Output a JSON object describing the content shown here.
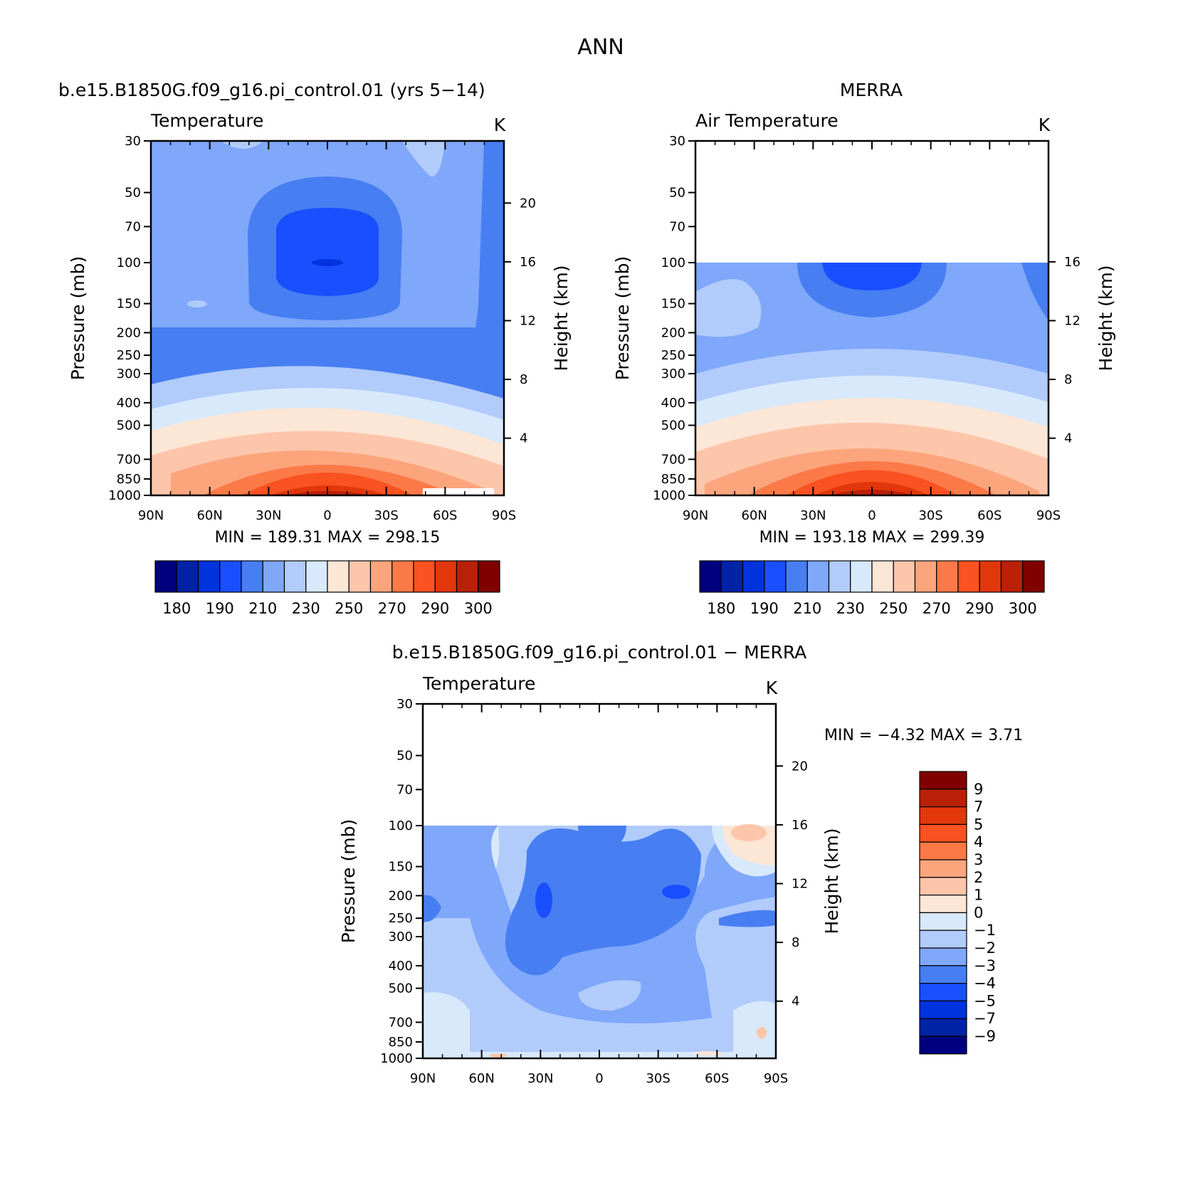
{
  "main_title": "ANN",
  "panels": {
    "model": {
      "title": "b.e15.B1850G.f09_g16.pi_control.01 (yrs 5−14)",
      "left_label": "Temperature",
      "units": "K",
      "ylabel": "Pressure (mb)",
      "y2label": "Height (km)",
      "minmax": "MIN = 189.31 MAX = 298.15"
    },
    "obs": {
      "title": "MERRA",
      "left_label": "Air Temperature",
      "units": "K",
      "ylabel": "Pressure (mb)",
      "y2label": "Height (km)",
      "minmax": "MIN = 193.18 MAX = 299.39"
    },
    "diff": {
      "title": "b.e15.B1850G.f09_g16.pi_control.01 − MERRA",
      "left_label": "Temperature",
      "units": "K",
      "ylabel": "Pressure (mb)",
      "y2label": "Height (km)",
      "minmax": "MIN = −4.32 MAX = 3.71"
    }
  },
  "chart_data": [
    {
      "type": "contour",
      "name": "model",
      "x_ticks": [
        "90N",
        "60N",
        "30N",
        "0",
        "30S",
        "60S",
        "90S"
      ],
      "x_range": [
        90,
        -90
      ],
      "y_ticks": [
        30,
        50,
        70,
        100,
        150,
        200,
        250,
        300,
        400,
        500,
        700,
        850,
        1000
      ],
      "y_range": [
        30,
        1000
      ],
      "y_scale": "log",
      "y2_ticks": [
        4,
        8,
        12,
        16,
        20
      ],
      "min": 189.31,
      "max": 298.15,
      "colorbar_ticks": [
        "180",
        "190",
        "210",
        "230",
        "250",
        "270",
        "290",
        "300"
      ]
    },
    {
      "type": "contour",
      "name": "obs",
      "x_ticks": [
        "90N",
        "60N",
        "30N",
        "0",
        "30S",
        "60S",
        "90S"
      ],
      "x_range": [
        90,
        -90
      ],
      "y_ticks": [
        30,
        50,
        70,
        100,
        150,
        200,
        250,
        300,
        400,
        500,
        700,
        850,
        1000
      ],
      "y_range": [
        30,
        1000
      ],
      "y_scale": "log",
      "y2_ticks": [
        4,
        8,
        12,
        16
      ],
      "data_top": 100,
      "min": 193.18,
      "max": 299.39,
      "colorbar_ticks": [
        "180",
        "190",
        "210",
        "230",
        "250",
        "270",
        "290",
        "300"
      ]
    },
    {
      "type": "contour",
      "name": "diff",
      "x_ticks": [
        "90N",
        "60N",
        "30N",
        "0",
        "30S",
        "60S",
        "90S"
      ],
      "x_range": [
        90,
        -90
      ],
      "y_ticks": [
        30,
        50,
        70,
        100,
        150,
        200,
        250,
        300,
        400,
        500,
        700,
        850,
        1000
      ],
      "y_range": [
        30,
        1000
      ],
      "y_scale": "log",
      "y2_ticks": [
        4,
        8,
        12,
        16,
        20
      ],
      "data_top": 100,
      "min": -4.32,
      "max": 3.71,
      "colorbar_ticks": [
        "9",
        "7",
        "5",
        "4",
        "3",
        "2",
        "1",
        "0",
        "−1",
        "−2",
        "−3",
        "−4",
        "−5",
        "−7",
        "−9"
      ]
    }
  ],
  "colors": {
    "scale": [
      "#00007f",
      "#0022a5",
      "#0033dd",
      "#1a4fff",
      "#477ef2",
      "#7fa7fa",
      "#b1cbfb",
      "#d8e9fb",
      "#fce6d6",
      "#fdc6aa",
      "#fca57d",
      "#fc7a48",
      "#fa5220",
      "#e1370b",
      "#b92008",
      "#800000"
    ]
  }
}
